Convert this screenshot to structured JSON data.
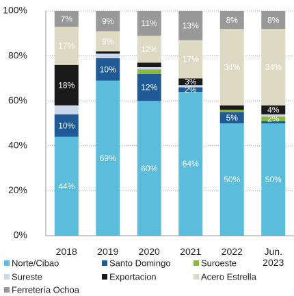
{
  "chart_data": {
    "type": "stacked_bar_percent",
    "categories": [
      "2018",
      "2019",
      "2020",
      "2021",
      "2022",
      "Jun. 2023"
    ],
    "series": [
      {
        "name": "Norte/Cibao",
        "color": "#5bbcdc",
        "values": [
          44,
          69,
          60,
          64,
          50,
          50
        ],
        "value_labels": [
          "44%",
          "69%",
          "60%",
          "64%",
          "50%",
          "50%"
        ]
      },
      {
        "name": "Santo Domingo",
        "color": "#1f5a96",
        "values": [
          10,
          10,
          12,
          2,
          5,
          1
        ],
        "value_labels": [
          "10%",
          "10%",
          "12%",
          "2%",
          "5%",
          null
        ]
      },
      {
        "name": "Suroeste",
        "color": "#8cb83c",
        "values": [
          0,
          0,
          2,
          0,
          1,
          2
        ],
        "value_labels": [
          null,
          null,
          null,
          null,
          null,
          "2%"
        ]
      },
      {
        "name": "Sureste",
        "color": "#c8d8ea",
        "values": [
          4,
          2,
          1,
          1,
          0,
          1
        ],
        "value_labels": [
          null,
          null,
          null,
          null,
          null,
          null
        ]
      },
      {
        "name": "Exportacion",
        "color": "#1a1a1a",
        "values": [
          18,
          1,
          2,
          3,
          2,
          4
        ],
        "value_labels": [
          "18%",
          null,
          null,
          "3%",
          null,
          "4%"
        ]
      },
      {
        "name": "Acero Estrella",
        "color": "#ddd9c3",
        "values": [
          17,
          9,
          12,
          17,
          34,
          34
        ],
        "value_labels": [
          "17%",
          "9%",
          "12%",
          "17%",
          "34%",
          "34%"
        ]
      },
      {
        "name": "Ferretería Ochoa",
        "color": "#999999",
        "values": [
          7,
          9,
          11,
          13,
          8,
          8
        ],
        "value_labels": [
          "7%",
          "9%",
          "11%",
          "13%",
          "8%",
          "8%"
        ]
      }
    ],
    "ylim": [
      0,
      100
    ],
    "yticks": [
      {
        "value": 0,
        "label": "0%"
      },
      {
        "value": 20,
        "label": "20%"
      },
      {
        "value": 40,
        "label": "40%"
      },
      {
        "value": 60,
        "label": "60%"
      },
      {
        "value": 80,
        "label": "80%"
      },
      {
        "value": 100,
        "label": "100%"
      }
    ],
    "grid": true
  }
}
